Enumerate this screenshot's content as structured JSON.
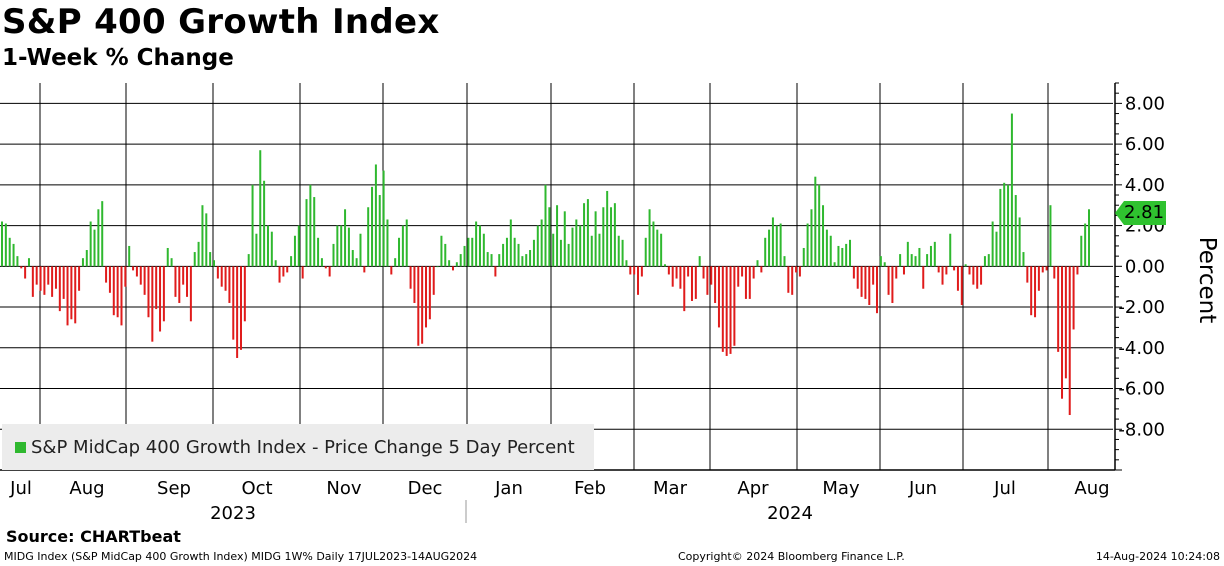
{
  "header": {
    "title": "S&P 400 Growth Index",
    "subtitle": "1-Week % Change"
  },
  "chart_data": {
    "type": "bar",
    "title": "S&P 400 Growth Index",
    "subtitle": "1-Week % Change",
    "ylabel": "Percent",
    "ylim": [
      -10.0,
      9.0
    ],
    "yticks": [
      8,
      6,
      4,
      2,
      0,
      -2,
      -4,
      -6,
      -8
    ],
    "ytick_labels": [
      "8.00",
      "6.00",
      "4.00",
      "2.00",
      "0.00",
      "-2.00",
      "-4.00",
      "-6.00",
      "-8.00"
    ],
    "month_labels": [
      "Jul",
      "Aug",
      "Sep",
      "Oct",
      "Nov",
      "Dec",
      "Jan",
      "Feb",
      "Mar",
      "Apr",
      "May",
      "Jun",
      "Jul",
      "Aug"
    ],
    "year_labels": [
      "2023",
      "2024"
    ],
    "legend": "S&P MidCap 400 Growth Index - Price Change 5 Day Percent",
    "last_value_label": "2.81",
    "positive_color": "#2fb82f",
    "negative_color": "#e01b1b",
    "grid": true,
    "series": [
      {
        "name": "S&P MidCap 400 Growth Index - Price Change 5 Day Percent",
        "values": [
          2.2,
          2.1,
          1.4,
          1.1,
          0.5,
          -0.1,
          -0.6,
          0.4,
          -1.5,
          -0.9,
          -1.2,
          -1.4,
          -0.9,
          -1.5,
          -1.1,
          -2.2,
          -1.6,
          -2.9,
          -2.6,
          -2.8,
          -1.2,
          0.4,
          0.8,
          2.2,
          1.8,
          2.8,
          3.2,
          -0.8,
          -1.3,
          -2.4,
          -2.5,
          -2.9,
          -1.0,
          1.0,
          -0.2,
          -0.5,
          -0.9,
          -1.4,
          -2.5,
          -3.7,
          -2.1,
          -3.2,
          -2.7,
          0.9,
          0.4,
          -1.5,
          -1.8,
          -0.9,
          -1.5,
          -2.7,
          0.7,
          1.2,
          3.0,
          2.6,
          0.7,
          0.3,
          -0.6,
          -1.0,
          -1.2,
          -1.8,
          -3.6,
          -4.5,
          -4.1,
          -2.7,
          0.6,
          4.0,
          1.6,
          5.7,
          4.2,
          2.0,
          1.7,
          0.3,
          -0.8,
          -0.5,
          -0.3,
          0.5,
          1.5,
          2.0,
          -0.6,
          3.3,
          4.0,
          3.4,
          1.4,
          0.4,
          -0.1,
          -0.5,
          1.1,
          2.0,
          2.0,
          2.8,
          1.9,
          0.8,
          0.4,
          1.6,
          -0.3,
          2.9,
          3.9,
          5.0,
          3.5,
          4.7,
          2.3,
          -0.4,
          0.4,
          1.4,
          2.0,
          2.3,
          -1.1,
          -1.8,
          -3.9,
          -3.8,
          -3.0,
          -2.6,
          -1.4,
          0.0,
          1.5,
          1.1,
          0.3,
          -0.2,
          0.2,
          0.6,
          1.0,
          1.4,
          1.4,
          2.2,
          2.0,
          1.6,
          0.7,
          0.6,
          -0.5,
          0.6,
          1.1,
          1.4,
          2.3,
          1.4,
          1.1,
          0.5,
          0.6,
          0.8,
          1.3,
          2.0,
          2.3,
          4.0,
          2.9,
          1.6,
          3.0,
          1.3,
          2.7,
          1.1,
          1.9,
          2.3,
          2.0,
          3.1,
          3.3,
          1.5,
          2.7,
          1.6,
          2.9,
          3.7,
          2.9,
          3.1,
          1.5,
          1.3,
          0.3,
          -0.4,
          -0.4,
          -1.4,
          -0.5,
          1.4,
          2.8,
          2.2,
          1.8,
          1.6,
          0.1,
          -0.4,
          -1.0,
          -0.6,
          -1.1,
          -2.2,
          -0.5,
          -1.7,
          -1.6,
          0.5,
          -0.6,
          -1.4,
          -0.9,
          -1.8,
          -3.0,
          -4.2,
          -4.4,
          -4.3,
          -3.9,
          -1.0,
          -0.5,
          -1.6,
          -1.6,
          -0.6,
          0.3,
          -0.3,
          1.4,
          1.8,
          2.4,
          2.0,
          2.1,
          0.5,
          -1.3,
          -1.4,
          -0.3,
          -0.5,
          0.9,
          2.1,
          2.8,
          4.4,
          4.0,
          3.0,
          1.8,
          1.5,
          0.2,
          1.0,
          0.9,
          1.1,
          1.3,
          -0.6,
          -1.1,
          -1.5,
          -1.6,
          -1.9,
          -0.9,
          -2.3,
          0.5,
          0.2,
          -1.4,
          -1.8,
          -0.6,
          0.6,
          -0.4,
          1.2,
          0.6,
          0.5,
          0.9,
          -1.1,
          0.6,
          1.0,
          1.2,
          -0.3,
          -0.9,
          -0.4,
          1.6,
          -0.2,
          -1.2,
          -1.9,
          0.1,
          -0.4,
          -0.9,
          -1.1,
          -0.9,
          0.5,
          0.6,
          2.2,
          1.7,
          3.8,
          4.1,
          4.0,
          7.5,
          3.5,
          2.4,
          0.7,
          -0.8,
          -2.4,
          -2.5,
          -1.2,
          -0.3,
          -0.2,
          3.0,
          -0.6,
          -4.2,
          -6.5,
          -5.5,
          -7.3,
          -3.1,
          -0.4,
          1.5,
          2.1,
          2.8
        ]
      }
    ]
  },
  "legend": {
    "label": "S&P MidCap 400 Growth Index - Price Change 5 Day Percent",
    "swatch_color": "#2fb82f"
  },
  "source": "Source:  CHARTbeat",
  "footer": {
    "left": "MIDG Index (S&P MidCap 400 Growth Index) MIDG 1W%  Daily 17JUL2023-14AUG2024",
    "center": "Copyright© 2024 Bloomberg Finance L.P.",
    "right": "14-Aug-2024 10:24:08"
  }
}
